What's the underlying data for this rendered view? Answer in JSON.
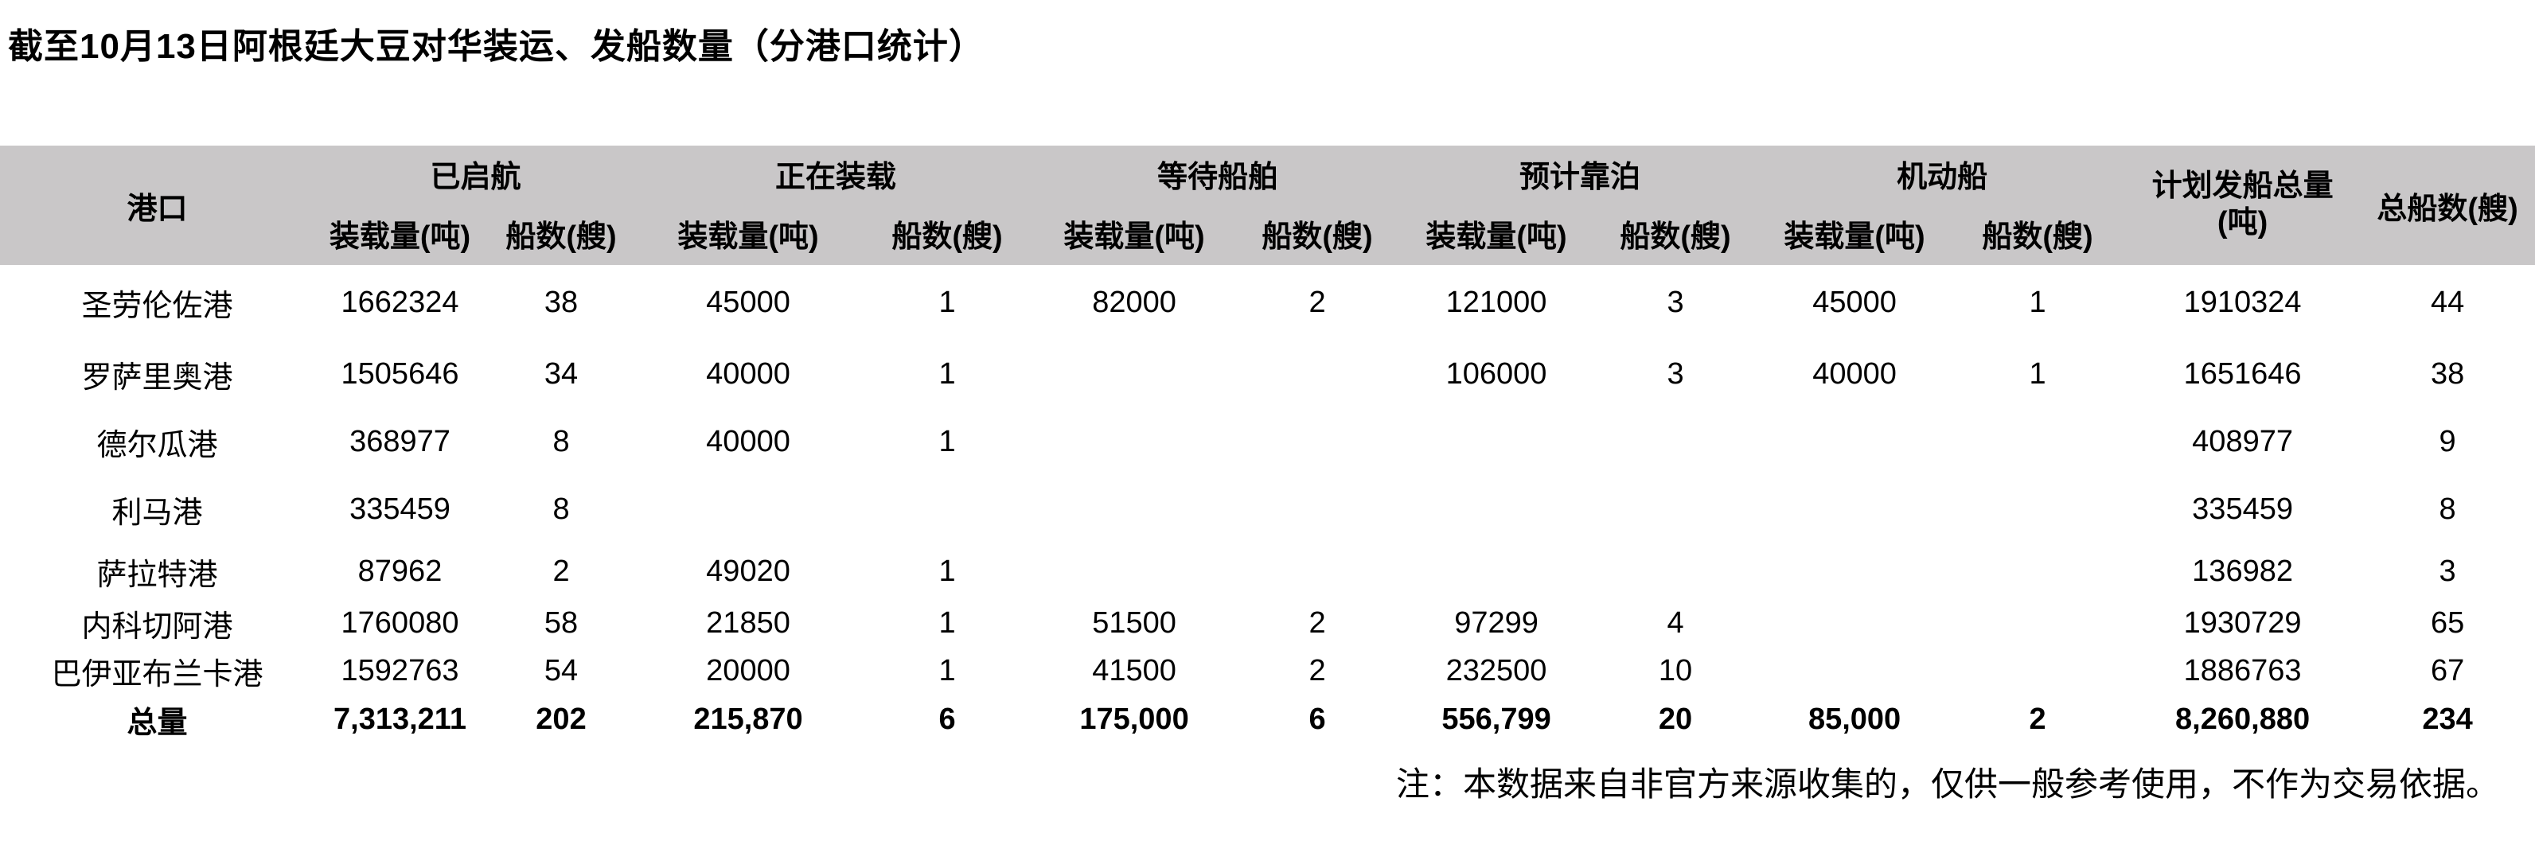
{
  "title": "截至10月13日阿根廷大豆对华装运、发船数量（分港口统计）",
  "note": "注：本数据来自非官方来源收集的，仅供一般参考使用，不作为交易依据。",
  "colors": {
    "header_bg": "#c9c7c8",
    "page_bg": "#ffffff",
    "text": "#000000"
  },
  "table": {
    "port_header": "港口",
    "sub_headers": {
      "tonnage": "装载量(吨)",
      "ships": "船数(艘)"
    },
    "groups": [
      {
        "label": "已启航"
      },
      {
        "label": "正在装载"
      },
      {
        "label": "等待船舶"
      },
      {
        "label": "预计靠泊"
      },
      {
        "label": "机动船"
      }
    ],
    "plan_total_header": {
      "line1": "计划发船总量",
      "line2": "(吨)"
    },
    "total_ships_header": "总船数(艘)",
    "rows": [
      {
        "port": "圣劳伦佐港",
        "is_total": false,
        "cells": [
          "1662324",
          "38",
          "45000",
          "1",
          "82000",
          "2",
          "121000",
          "3",
          "45000",
          "1",
          "1910324",
          "44"
        ]
      },
      {
        "port": "罗萨里奥港",
        "is_total": false,
        "cells": [
          "1505646",
          "34",
          "40000",
          "1",
          "",
          "",
          "106000",
          "3",
          "40000",
          "1",
          "1651646",
          "38"
        ]
      },
      {
        "port": "德尔瓜港",
        "is_total": false,
        "cells": [
          "368977",
          "8",
          "40000",
          "1",
          "",
          "",
          "",
          "",
          "",
          "",
          "408977",
          "9"
        ]
      },
      {
        "port": "利马港",
        "is_total": false,
        "cells": [
          "335459",
          "8",
          "",
          "",
          "",
          "",
          "",
          "",
          "",
          "",
          "335459",
          "8"
        ]
      },
      {
        "port": "萨拉特港",
        "is_total": false,
        "cells": [
          "87962",
          "2",
          "49020",
          "1",
          "",
          "",
          "",
          "",
          "",
          "",
          "136982",
          "3"
        ]
      },
      {
        "port": "内科切阿港",
        "is_total": false,
        "cells": [
          "1760080",
          "58",
          "21850",
          "1",
          "51500",
          "2",
          "97299",
          "4",
          "",
          "",
          "1930729",
          "65"
        ]
      },
      {
        "port": "巴伊亚布兰卡港",
        "is_total": false,
        "cells": [
          "1592763",
          "54",
          "20000",
          "1",
          "41500",
          "2",
          "232500",
          "10",
          "",
          "",
          "1886763",
          "67"
        ]
      },
      {
        "port": "总量",
        "is_total": true,
        "cells": [
          "7,313,211",
          "202",
          "215,870",
          "6",
          "175,000",
          "6",
          "556,799",
          "20",
          "85,000",
          "2",
          "8,260,880",
          "234"
        ]
      }
    ]
  }
}
